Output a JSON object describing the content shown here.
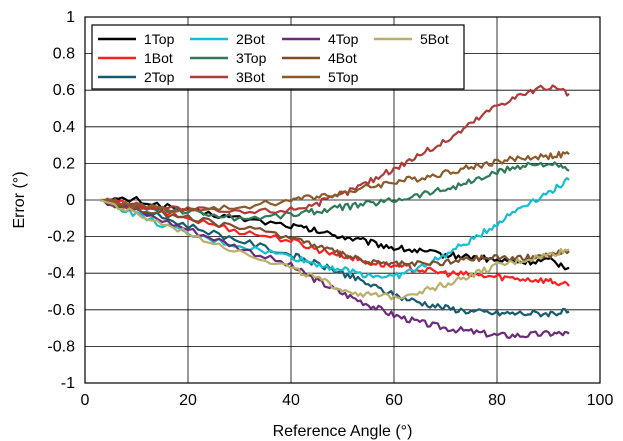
{
  "chart_data": {
    "type": "line",
    "xlabel": "Reference Angle (°)",
    "ylabel": "Error (°)",
    "xlim": [
      0,
      100
    ],
    "ylim": [
      -1,
      1
    ],
    "x_ticks": [
      "0",
      "20",
      "40",
      "60",
      "80",
      "100"
    ],
    "y_ticks": [
      "1",
      "0.8",
      "0.6",
      "0.4",
      "0.2",
      "0",
      "-0.2",
      "-0.4",
      "-0.6",
      "-0.8",
      "-1"
    ],
    "grid": true,
    "legend_position": "top-left",
    "x": [
      3,
      10,
      20,
      30,
      40,
      45,
      50,
      55,
      60,
      65,
      70,
      75,
      80,
      85,
      90,
      94
    ],
    "series": [
      {
        "name": "1Top",
        "color": "#000000",
        "values": [
          0.0,
          0.0,
          -0.06,
          -0.1,
          -0.14,
          -0.17,
          -0.2,
          -0.23,
          -0.26,
          -0.28,
          -0.3,
          -0.31,
          -0.33,
          -0.34,
          -0.33,
          -0.37
        ]
      },
      {
        "name": "1Bot",
        "color": "#ff1f1f",
        "values": [
          0.0,
          -0.03,
          -0.1,
          -0.17,
          -0.22,
          -0.27,
          -0.3,
          -0.34,
          -0.36,
          -0.38,
          -0.4,
          -0.41,
          -0.42,
          -0.43,
          -0.44,
          -0.47
        ]
      },
      {
        "name": "2Top",
        "color": "#1a5a6e",
        "values": [
          0.0,
          -0.05,
          -0.14,
          -0.22,
          -0.3,
          -0.35,
          -0.4,
          -0.46,
          -0.52,
          -0.56,
          -0.59,
          -0.61,
          -0.62,
          -0.62,
          -0.62,
          -0.61
        ]
      },
      {
        "name": "2Bot",
        "color": "#13bfd1",
        "values": [
          0.0,
          -0.08,
          -0.19,
          -0.25,
          -0.31,
          -0.35,
          -0.38,
          -0.41,
          -0.42,
          -0.37,
          -0.3,
          -0.22,
          -0.13,
          -0.03,
          0.04,
          0.11
        ]
      },
      {
        "name": "3Top",
        "color": "#2e7a56",
        "values": [
          0.0,
          -0.04,
          -0.06,
          -0.1,
          -0.08,
          -0.06,
          -0.04,
          -0.02,
          0.0,
          0.03,
          0.06,
          0.1,
          0.15,
          0.19,
          0.2,
          0.16
        ]
      },
      {
        "name": "3Bot",
        "color": "#b03a3a",
        "values": [
          0.0,
          -0.03,
          -0.05,
          -0.07,
          -0.05,
          -0.02,
          0.03,
          0.1,
          0.17,
          0.25,
          0.32,
          0.42,
          0.52,
          0.58,
          0.62,
          0.58
        ]
      },
      {
        "name": "4Top",
        "color": "#6b2b7a",
        "values": [
          0.0,
          -0.06,
          -0.16,
          -0.26,
          -0.36,
          -0.44,
          -0.51,
          -0.57,
          -0.63,
          -0.67,
          -0.7,
          -0.72,
          -0.74,
          -0.74,
          -0.73,
          -0.73
        ]
      },
      {
        "name": "4Bot",
        "color": "#7a4f2e",
        "values": [
          0.0,
          -0.05,
          -0.1,
          -0.15,
          -0.2,
          -0.25,
          -0.3,
          -0.34,
          -0.35,
          -0.35,
          -0.34,
          -0.32,
          -0.31,
          -0.32,
          -0.3,
          -0.28
        ]
      },
      {
        "name": "5Top",
        "color": "#8b5a2b",
        "values": [
          0.0,
          -0.03,
          -0.06,
          -0.04,
          0.0,
          0.02,
          0.04,
          0.07,
          0.1,
          0.12,
          0.15,
          0.18,
          0.21,
          0.23,
          0.24,
          0.25
        ]
      },
      {
        "name": "5Bot",
        "color": "#b8b06a",
        "values": [
          0.0,
          -0.08,
          -0.18,
          -0.28,
          -0.37,
          -0.43,
          -0.49,
          -0.52,
          -0.53,
          -0.5,
          -0.46,
          -0.41,
          -0.36,
          -0.33,
          -0.3,
          -0.27
        ]
      }
    ]
  }
}
